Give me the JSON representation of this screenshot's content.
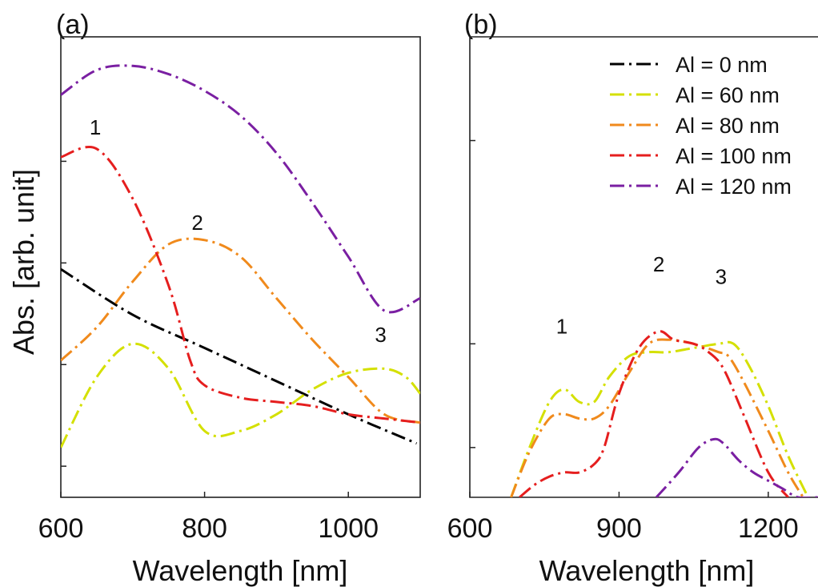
{
  "figure": {
    "y_axis_label": "Abs. [arb. unit]"
  },
  "chart_data": [
    {
      "panel_label": "(a)",
      "type": "line",
      "xlabel": "Wavelength [nm]",
      "ylabel": "Abs. [arb. unit]",
      "xlim": [
        600,
        1100
      ],
      "xticks": [
        600,
        800,
        1000
      ],
      "ylim": [
        0,
        1
      ],
      "y_tick_labels_shown": false,
      "legend": null,
      "annotations": [
        {
          "text": "1",
          "x": 648,
          "y": 0.84
        },
        {
          "text": "2",
          "x": 790,
          "y": 0.61
        },
        {
          "text": "3",
          "x": 1045,
          "y": 0.34
        }
      ],
      "series": [
        {
          "name": "Al = 0 nm",
          "color": "#000000",
          "x": [
            600,
            700,
            800,
            900,
            1000,
            1095
          ],
          "y": [
            0.55,
            0.44,
            0.36,
            0.28,
            0.2,
            0.13
          ]
        },
        {
          "name": "Al = 60 nm",
          "color": "#d4e000",
          "x": [
            600,
            650,
            700,
            750,
            800,
            850,
            900,
            950,
            1000,
            1050,
            1080,
            1100
          ],
          "y": [
            0.12,
            0.29,
            0.37,
            0.31,
            0.16,
            0.16,
            0.2,
            0.26,
            0.3,
            0.31,
            0.29,
            0.25
          ]
        },
        {
          "name": "Al = 80 nm",
          "color": "#f08a1c",
          "x": [
            600,
            650,
            700,
            750,
            800,
            850,
            900,
            950,
            1000,
            1050,
            1100
          ],
          "y": [
            0.33,
            0.41,
            0.52,
            0.61,
            0.62,
            0.58,
            0.48,
            0.38,
            0.29,
            0.2,
            0.18
          ]
        },
        {
          "name": "Al = 100 nm",
          "color": "#e51e1e",
          "x": [
            600,
            650,
            700,
            750,
            780,
            800,
            850,
            900,
            950,
            1000,
            1050,
            1100
          ],
          "y": [
            0.82,
            0.84,
            0.72,
            0.51,
            0.33,
            0.27,
            0.24,
            0.23,
            0.22,
            0.2,
            0.19,
            0.18
          ]
        },
        {
          "name": "Al = 120 nm",
          "color": "#7a1fa2",
          "x": [
            600,
            650,
            700,
            750,
            800,
            850,
            900,
            950,
            1000,
            1050,
            1100
          ],
          "y": [
            0.97,
            1.03,
            1.04,
            1.02,
            0.98,
            0.92,
            0.83,
            0.71,
            0.58,
            0.45,
            0.48
          ]
        }
      ]
    },
    {
      "panel_label": "(b)",
      "type": "line",
      "xlabel": "Wavelength [nm]",
      "ylabel": "",
      "xlim": [
        600,
        1300
      ],
      "xticks": [
        600,
        900,
        1200
      ],
      "ylim": [
        0,
        1
      ],
      "y_tick_labels_shown": false,
      "legend": {
        "position": "top-right",
        "entries": [
          "Al = 0 nm",
          "Al = 60 nm",
          "Al = 80 nm",
          "Al = 100 nm",
          "Al = 120 nm"
        ]
      },
      "annotations": [
        {
          "text": "1",
          "x": 785,
          "y": 0.36
        },
        {
          "text": "2",
          "x": 980,
          "y": 0.51
        },
        {
          "text": "3",
          "x": 1105,
          "y": 0.48
        }
      ],
      "series": [
        {
          "name": "Al = 0 nm",
          "color": "#000000",
          "x": [],
          "y": []
        },
        {
          "name": "Al = 60 nm",
          "color": "#d4e000",
          "x": [
            683,
            720,
            760,
            790,
            820,
            850,
            880,
            920,
            960,
            1000,
            1050,
            1100,
            1130,
            1160,
            1200,
            1240,
            1280
          ],
          "y": [
            0.0,
            0.12,
            0.23,
            0.26,
            0.23,
            0.23,
            0.29,
            0.34,
            0.35,
            0.35,
            0.36,
            0.37,
            0.37,
            0.32,
            0.22,
            0.1,
            0.0
          ]
        },
        {
          "name": "Al = 80 nm",
          "color": "#f08a1c",
          "x": [
            683,
            720,
            760,
            790,
            820,
            850,
            880,
            920,
            960,
            1000,
            1050,
            1100,
            1120,
            1150,
            1200,
            1240,
            1270
          ],
          "y": [
            0.0,
            0.11,
            0.19,
            0.2,
            0.19,
            0.19,
            0.22,
            0.3,
            0.37,
            0.38,
            0.37,
            0.35,
            0.34,
            0.28,
            0.16,
            0.06,
            0.0
          ]
        },
        {
          "name": "Al = 100 nm",
          "color": "#e51e1e",
          "x": [
            700,
            730,
            760,
            790,
            820,
            850,
            870,
            900,
            940,
            980,
            1010,
            1050,
            1080,
            1110,
            1150,
            1200,
            1240
          ],
          "y": [
            0.0,
            0.03,
            0.05,
            0.06,
            0.06,
            0.08,
            0.12,
            0.25,
            0.36,
            0.4,
            0.38,
            0.37,
            0.35,
            0.31,
            0.2,
            0.06,
            0.0
          ]
        },
        {
          "name": "Al = 120 nm",
          "color": "#7a1fa2",
          "x": [
            975,
            1020,
            1060,
            1090,
            1110,
            1140,
            1170,
            1200,
            1230,
            1260,
            1300
          ],
          "y": [
            0.0,
            0.06,
            0.12,
            0.14,
            0.13,
            0.09,
            0.06,
            0.04,
            0.02,
            0.0,
            0.0
          ]
        }
      ]
    }
  ]
}
